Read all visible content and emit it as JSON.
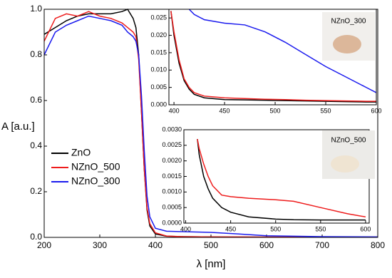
{
  "chart_data": [
    {
      "type": "line",
      "xlabel": "λ [nm]",
      "ylabel": "A [a.u.]",
      "x": [
        200,
        220,
        240,
        260,
        280,
        300,
        320,
        340,
        350,
        360,
        365,
        370,
        375,
        380,
        385,
        390,
        400,
        420,
        450,
        500,
        550,
        600,
        700,
        800
      ],
      "series": [
        {
          "name": "ZnO",
          "color": "#000000",
          "values": [
            0.89,
            0.92,
            0.95,
            0.97,
            0.98,
            0.98,
            0.98,
            0.99,
            1.0,
            0.96,
            0.92,
            0.8,
            0.55,
            0.3,
            0.12,
            0.05,
            0.015,
            0.005,
            0.003,
            0.002,
            0.001,
            0.001,
            0.001,
            0.001
          ]
        },
        {
          "name": "NZnO_500",
          "color": "#ee1c1c",
          "values": [
            0.86,
            0.96,
            0.98,
            0.97,
            0.99,
            0.97,
            0.96,
            0.94,
            0.92,
            0.9,
            0.88,
            0.78,
            0.55,
            0.3,
            0.13,
            0.06,
            0.02,
            0.006,
            0.003,
            0.002,
            0.002,
            0.001,
            0.001,
            0.001
          ]
        },
        {
          "name": "NZnO_300",
          "color": "#1a1aee",
          "values": [
            0.8,
            0.9,
            0.93,
            0.95,
            0.97,
            0.96,
            0.95,
            0.93,
            0.9,
            0.88,
            0.86,
            0.8,
            0.62,
            0.38,
            0.18,
            0.09,
            0.04,
            0.027,
            0.025,
            0.022,
            0.015,
            0.007,
            0.003,
            0.002
          ]
        }
      ],
      "xlim": [
        200,
        800
      ],
      "xticks": [
        200,
        300,
        400,
        500,
        600,
        700,
        800
      ],
      "ylim": [
        0,
        1.0
      ],
      "yticks": [
        {
          "value": 0,
          "label": "0.0"
        },
        0.2,
        0.4,
        0.6,
        0.8,
        {
          "value": 1.0,
          "label": "1.0"
        }
      ],
      "legend": "left"
    },
    {
      "type": "line",
      "photo_label": "NZnO_300",
      "x": [
        397,
        400,
        405,
        410,
        415,
        420,
        430,
        450,
        470,
        490,
        510,
        530,
        550,
        570,
        590,
        600
      ],
      "series": [
        {
          "color": "#000000",
          "values": [
            0.027,
            0.02,
            0.012,
            0.007,
            0.0045,
            0.003,
            0.002,
            0.0015,
            0.0014,
            0.0013,
            0.0012,
            0.0011,
            0.001,
            0.0009,
            0.0008,
            0.0008
          ]
        },
        {
          "color": "#ee1c1c",
          "values": [
            0.027,
            0.021,
            0.013,
            0.0075,
            0.005,
            0.0035,
            0.0025,
            0.002,
            0.0018,
            0.0016,
            0.0015,
            0.0013,
            0.0012,
            0.0011,
            0.001,
            0.001
          ]
        },
        {
          "color": "#1a1aee",
          "values": [
            null,
            null,
            null,
            null,
            0.0275,
            0.026,
            0.0245,
            0.0235,
            0.023,
            0.021,
            0.018,
            0.0145,
            0.011,
            0.008,
            0.005,
            0.0035
          ]
        }
      ],
      "xlim": [
        395,
        600
      ],
      "xticks": [
        400,
        450,
        500,
        550,
        600
      ],
      "ylim": [
        0,
        0.0275
      ],
      "yticks": [
        {
          "value": 0,
          "label": "0.000"
        },
        0.005,
        {
          "value": 0.01,
          "label": "0.010"
        },
        0.015,
        {
          "value": 0.02,
          "label": "0.020"
        },
        0.025
      ]
    },
    {
      "type": "line",
      "photo_label": "NZnO_500",
      "x": [
        413,
        415,
        420,
        425,
        430,
        440,
        450,
        470,
        500,
        520,
        550,
        580,
        600
      ],
      "series": [
        {
          "color": "#000000",
          "values": [
            0.0027,
            0.0022,
            0.0015,
            0.0011,
            0.0008,
            0.0005,
            0.00035,
            0.0002,
            0.00013,
            0.00011,
            0.0001,
            0.0001,
            0.0001
          ]
        },
        {
          "color": "#ee1c1c",
          "values": [
            0.0027,
            0.0024,
            0.0019,
            0.0015,
            0.0012,
            0.0009,
            0.00085,
            0.0008,
            0.00075,
            0.0007,
            0.0005,
            0.0003,
            0.0002
          ]
        }
      ],
      "xlim": [
        398,
        604
      ],
      "xticks": [
        400,
        450,
        500,
        550,
        600
      ],
      "ylim": [
        0,
        0.003
      ],
      "yticks": [
        {
          "value": 0,
          "label": "0.0000"
        },
        0.0005,
        {
          "value": 0.001,
          "label": "0.0010"
        },
        0.0015,
        {
          "value": 0.002,
          "label": "0.0020"
        },
        0.0025,
        {
          "value": 0.003,
          "label": "0.0030"
        }
      ]
    }
  ]
}
